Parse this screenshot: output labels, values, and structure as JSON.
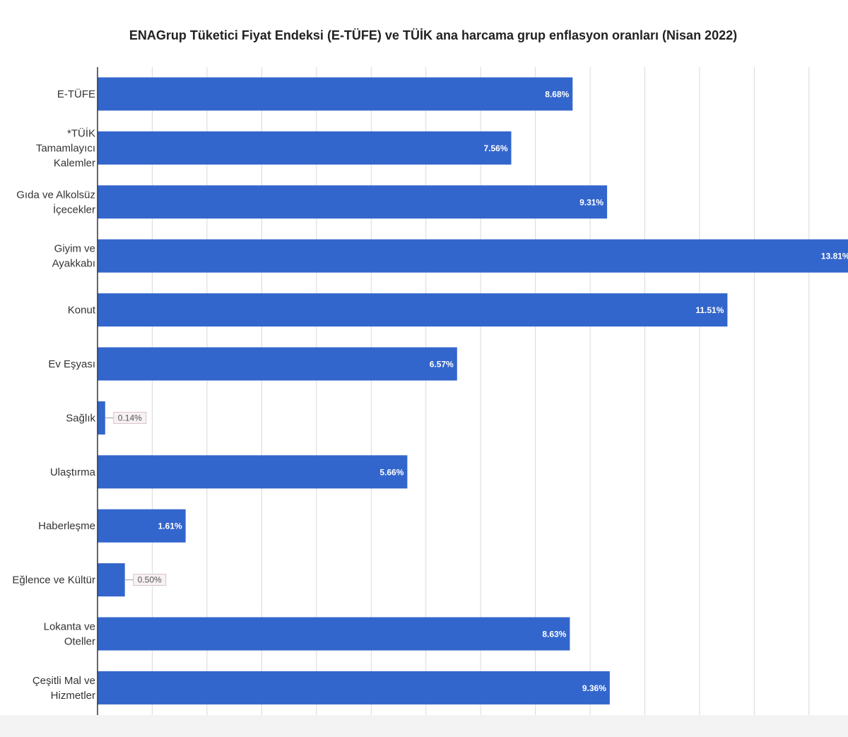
{
  "chart_data": {
    "type": "bar",
    "orientation": "horizontal",
    "title": "ENAGrup Tüketici Fiyat Endeksi (E-TÜFE) ve TÜİK ana harcama grup enflasyon oranları (Nisan 2022)",
    "xlabel": "",
    "ylabel": "",
    "xlim": [
      0,
      14
    ],
    "grid": true,
    "legend": "none",
    "bar_color": "#3366cc",
    "categories": [
      [
        "E-TÜFE"
      ],
      [
        "*TÜİK",
        "Tamamlayıcı",
        "Kalemler"
      ],
      [
        "Gıda ve Alkolsüz",
        "İçecekler"
      ],
      [
        "Giyim ve",
        "Ayakkabı"
      ],
      [
        "Konut"
      ],
      [
        "Ev Eşyası"
      ],
      [
        "Sağlık"
      ],
      [
        "Ulaştırma"
      ],
      [
        "Haberleşme"
      ],
      [
        "Eğlence ve Kültür"
      ],
      [
        "Lokanta ve",
        "Oteller"
      ],
      [
        "Çeşitli Mal ve",
        "Hizmetler"
      ]
    ],
    "values": [
      8.68,
      7.56,
      9.31,
      13.81,
      11.51,
      6.57,
      0.14,
      5.66,
      1.61,
      0.5,
      8.63,
      9.36
    ],
    "value_labels": [
      "8.68%",
      "7.56%",
      "9.31%",
      "13.81%",
      "11.51%",
      "6.57%",
      "0.14%",
      "5.66%",
      "1.61%",
      "0.50%",
      "8.63%",
      "9.36%"
    ]
  }
}
